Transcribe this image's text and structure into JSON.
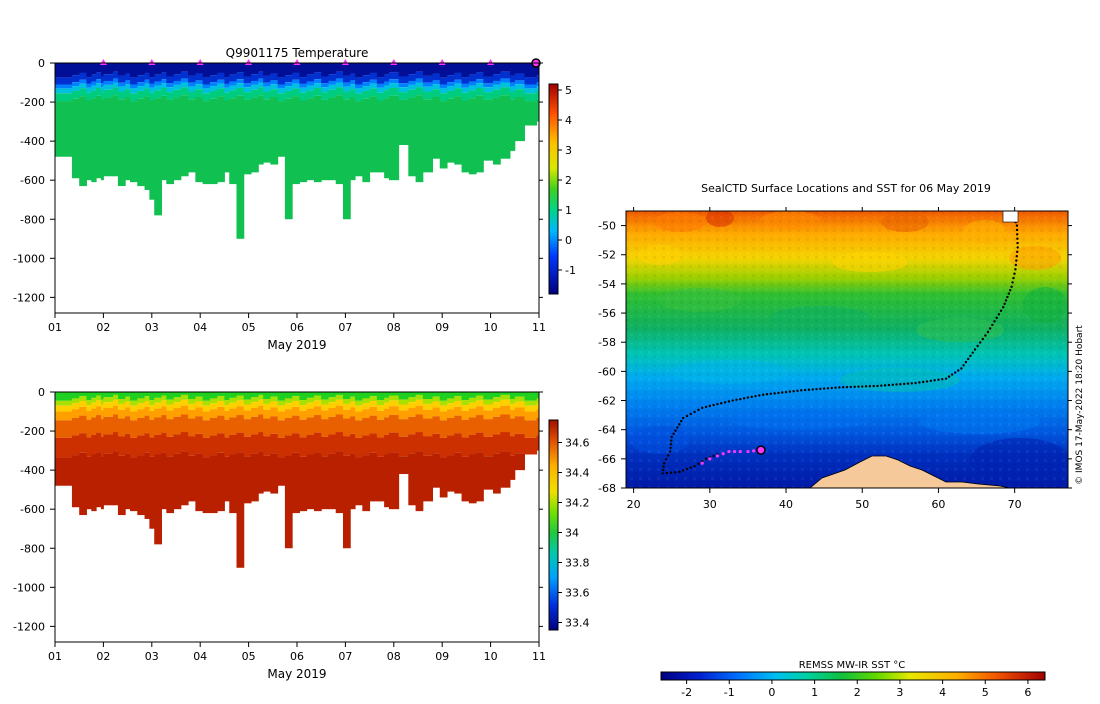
{
  "colors": {
    "sea_deep": "#000fa0",
    "land": "#f5c99a",
    "track": "#000000",
    "recent_track": "#ff33ff",
    "frame": "#000000"
  },
  "chart_data": [
    {
      "id": "temperature",
      "type": "heatmap",
      "title": "Q9901175  Temperature",
      "xlabel": "May 2019",
      "ylabel": "",
      "x_ticks": [
        "01",
        "02",
        "03",
        "04",
        "05",
        "06",
        "07",
        "08",
        "09",
        "10",
        "11"
      ],
      "y_ticks": [
        "0",
        "-200",
        "-400",
        "-600",
        "-800",
        "-1000",
        "-1200"
      ],
      "xlim": [
        1,
        11
      ],
      "ylim": [
        -1280,
        0
      ],
      "profile_times": [
        1.0,
        1.35,
        1.5,
        1.65,
        1.75,
        1.85,
        1.95,
        2.0,
        2.2,
        2.3,
        2.45,
        2.55,
        2.7,
        2.85,
        2.95,
        3.05,
        3.2,
        3.3,
        3.45,
        3.6,
        3.75,
        3.9,
        4.05,
        4.2,
        4.35,
        4.5,
        4.6,
        4.75,
        4.9,
        5.05,
        5.2,
        5.3,
        5.45,
        5.6,
        5.75,
        5.9,
        6.05,
        6.2,
        6.35,
        6.5,
        6.65,
        6.8,
        6.95,
        7.1,
        7.2,
        7.35,
        7.5,
        7.65,
        7.8,
        7.9,
        8.1,
        8.3,
        8.45,
        8.6,
        8.8,
        8.95,
        9.1,
        9.25,
        9.4,
        9.55,
        9.7,
        9.85,
        10.05,
        10.2,
        10.4,
        10.5,
        10.7,
        10.95
      ],
      "profile_depths": [
        -480,
        -590,
        -630,
        -600,
        -610,
        -590,
        -600,
        -580,
        -580,
        -630,
        -600,
        -610,
        -630,
        -650,
        -700,
        -780,
        -600,
        -620,
        -600,
        -580,
        -560,
        -610,
        -620,
        -620,
        -610,
        -560,
        -620,
        -900,
        -570,
        -560,
        -520,
        -510,
        -520,
        -480,
        -800,
        -620,
        -610,
        -600,
        -610,
        -600,
        -600,
        -620,
        -800,
        -600,
        -580,
        -610,
        -560,
        -560,
        -590,
        -600,
        -420,
        -580,
        -610,
        -560,
        -490,
        -540,
        -510,
        -520,
        -560,
        -570,
        -560,
        -500,
        -520,
        -490,
        -450,
        -400,
        -320,
        -300
      ],
      "surface_markers": [
        2,
        3,
        4,
        5,
        6,
        7,
        8,
        9,
        10
      ],
      "last_position_marker": 11,
      "colorbar_ticks": [
        "-1",
        "0",
        "1",
        "2",
        "3",
        "4",
        "5"
      ],
      "colorbar_range": [
        -1.8,
        5.2
      ]
    },
    {
      "id": "salinity",
      "type": "heatmap",
      "title": "",
      "xlabel": "May 2019",
      "ylabel": "",
      "x_ticks": [
        "01",
        "02",
        "03",
        "04",
        "05",
        "06",
        "07",
        "08",
        "09",
        "10",
        "11"
      ],
      "y_ticks": [
        "0",
        "-200",
        "-400",
        "-600",
        "-800",
        "-1000",
        "-1200"
      ],
      "xlim": [
        1,
        11
      ],
      "ylim": [
        -1280,
        0
      ],
      "colorbar_ticks": [
        "33.4",
        "33.6",
        "33.8",
        "34",
        "34.2",
        "34.4",
        "34.6"
      ],
      "colorbar_range": [
        33.35,
        34.75
      ]
    },
    {
      "id": "sst_map",
      "type": "heatmap",
      "title": "SealCTD Surface Locations and SST for 06 May 2019",
      "x_ticks": [
        "20",
        "30",
        "40",
        "50",
        "60",
        "70"
      ],
      "y_ticks": [
        "-50",
        "-52",
        "-54",
        "-56",
        "-58",
        "-60",
        "-62",
        "-64",
        "-66",
        "-68"
      ],
      "xlim": [
        19,
        77
      ],
      "ylim": [
        -68,
        -49
      ],
      "colorbar_label": "REMSS MW-IR SST °C",
      "colorbar_ticks": [
        "-2",
        "-1",
        "0",
        "1",
        "2",
        "3",
        "4",
        "5",
        "6"
      ],
      "colorbar_range": [
        -2.6,
        6.4
      ],
      "track": [
        [
          69.8,
          -49.3
        ],
        [
          70.3,
          -50.0
        ],
        [
          70.4,
          -51.5
        ],
        [
          70.1,
          -53.0
        ],
        [
          69.6,
          -54.2
        ],
        [
          68.5,
          -55.6
        ],
        [
          66.5,
          -57.3
        ],
        [
          64.8,
          -58.5
        ],
        [
          63.0,
          -59.8
        ],
        [
          61.0,
          -60.5
        ],
        [
          57.0,
          -60.8
        ],
        [
          52.0,
          -61.0
        ],
        [
          47.0,
          -61.1
        ],
        [
          42.0,
          -61.3
        ],
        [
          37.0,
          -61.6
        ],
        [
          33.0,
          -62.0
        ],
        [
          29.0,
          -62.5
        ],
        [
          26.5,
          -63.2
        ],
        [
          25.0,
          -64.5
        ],
        [
          24.8,
          -65.5
        ],
        [
          24.0,
          -66.3
        ],
        [
          23.8,
          -67.0
        ],
        [
          26.0,
          -66.9
        ],
        [
          28.0,
          -66.5
        ],
        [
          29.5,
          -66.0
        ],
        [
          31.5,
          -65.6
        ]
      ],
      "recent_track": [
        [
          29.0,
          -66.3
        ],
        [
          30.0,
          -66.0
        ],
        [
          31.0,
          -65.8
        ],
        [
          32.5,
          -65.5
        ],
        [
          34.0,
          -65.5
        ],
        [
          35.0,
          -65.5
        ],
        [
          36.5,
          -65.4
        ]
      ],
      "current_position": [
        36.7,
        -65.4
      ],
      "credit": "© IMOS 17-May-2022 18:20 Hobart"
    }
  ]
}
